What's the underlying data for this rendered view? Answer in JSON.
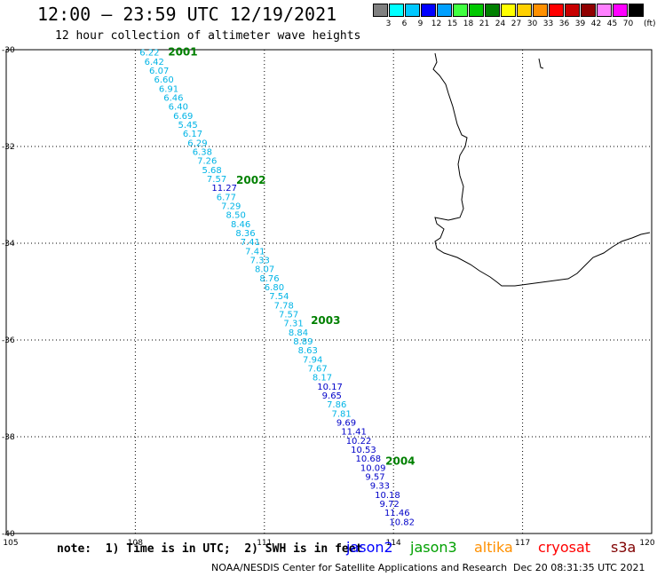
{
  "header": {
    "title": "12:00 – 23:59 UTC 12/19/2021",
    "subtitle": "12 hour collection of altimeter wave heights"
  },
  "colorbar": {
    "swatches": [
      {
        "color": "#808080",
        "label": ""
      },
      {
        "color": "#00ffff",
        "label": "3"
      },
      {
        "color": "#00c8ff",
        "label": "6"
      },
      {
        "color": "#0000ff",
        "label": "9"
      },
      {
        "color": "#00a0ff",
        "label": "12"
      },
      {
        "color": "#40ff40",
        "label": "15"
      },
      {
        "color": "#00c800",
        "label": "18"
      },
      {
        "color": "#008000",
        "label": "21"
      },
      {
        "color": "#ffff00",
        "label": "24"
      },
      {
        "color": "#ffd000",
        "label": "27"
      },
      {
        "color": "#ff9000",
        "label": "30"
      },
      {
        "color": "#ff0000",
        "label": "33"
      },
      {
        "color": "#c80000",
        "label": "36"
      },
      {
        "color": "#900000",
        "label": "39"
      },
      {
        "color": "#ff80ff",
        "label": "42"
      },
      {
        "color": "#ff00ff",
        "label": "45"
      },
      {
        "color": "#000000",
        "label": "70"
      }
    ],
    "unit": "(ft)"
  },
  "map": {
    "lon_labels": [
      "105",
      "108",
      "111",
      "114",
      "117",
      "120"
    ],
    "lat_labels": [
      "-30",
      "-32",
      "-34",
      "-36",
      "-38",
      "-40"
    ],
    "hour_labels": [
      {
        "text": "2001",
        "lat": -30.05
      },
      {
        "text": "2002",
        "lat": -32.7
      },
      {
        "text": "2003",
        "lat": -35.6
      },
      {
        "text": "2004",
        "lat": -38.5
      }
    ],
    "track_points": [
      {
        "v": "6.22",
        "c": "#00b4e6"
      },
      {
        "v": "6.42",
        "c": "#00b4e6"
      },
      {
        "v": "6.07",
        "c": "#00b4e6"
      },
      {
        "v": "6.60",
        "c": "#00b4e6"
      },
      {
        "v": "6.91",
        "c": "#00b4e6"
      },
      {
        "v": "6.46",
        "c": "#00b4e6"
      },
      {
        "v": "6.40",
        "c": "#00b4e6"
      },
      {
        "v": "6.69",
        "c": "#00b4e6"
      },
      {
        "v": "5.45",
        "c": "#00b4e6"
      },
      {
        "v": "6.17",
        "c": "#00b4e6"
      },
      {
        "v": "6.29",
        "c": "#00b4e6"
      },
      {
        "v": "6.38",
        "c": "#00b4e6"
      },
      {
        "v": "7.26",
        "c": "#00b4e6"
      },
      {
        "v": "5.68",
        "c": "#00b4e6"
      },
      {
        "v": "7.57",
        "c": "#00b4e6"
      },
      {
        "v": "11.27",
        "c": "#0000c8"
      },
      {
        "v": "6.77",
        "c": "#00b4e6"
      },
      {
        "v": "7.29",
        "c": "#00b4e6"
      },
      {
        "v": "8.50",
        "c": "#00b4e6"
      },
      {
        "v": "8.46",
        "c": "#00b4e6"
      },
      {
        "v": "8.36",
        "c": "#00b4e6"
      },
      {
        "v": "7.41",
        "c": "#00b4e6"
      },
      {
        "v": "7.41",
        "c": "#00b4e6"
      },
      {
        "v": "7.33",
        "c": "#00b4e6"
      },
      {
        "v": "8.07",
        "c": "#00b4e6"
      },
      {
        "v": "8.76",
        "c": "#00b4e6"
      },
      {
        "v": "6.80",
        "c": "#00b4e6"
      },
      {
        "v": "7.54",
        "c": "#00b4e6"
      },
      {
        "v": "7.78",
        "c": "#00b4e6"
      },
      {
        "v": "7.57",
        "c": "#00b4e6"
      },
      {
        "v": "7.31",
        "c": "#00b4e6"
      },
      {
        "v": "8.84",
        "c": "#00b4e6"
      },
      {
        "v": "8.89",
        "c": "#00b4e6"
      },
      {
        "v": "8.63",
        "c": "#00b4e6"
      },
      {
        "v": "7.94",
        "c": "#00b4e6"
      },
      {
        "v": "7.67",
        "c": "#00b4e6"
      },
      {
        "v": "8.17",
        "c": "#00b4e6"
      },
      {
        "v": "10.17",
        "c": "#0000c8"
      },
      {
        "v": "9.65",
        "c": "#0000c8"
      },
      {
        "v": "7.86",
        "c": "#00b4e6"
      },
      {
        "v": "7.81",
        "c": "#00b4e6"
      },
      {
        "v": "9.69",
        "c": "#0000c8"
      },
      {
        "v": "11.41",
        "c": "#0000c8"
      },
      {
        "v": "10.22",
        "c": "#0000c8"
      },
      {
        "v": "10.53",
        "c": "#0000c8"
      },
      {
        "v": "10.68",
        "c": "#0000c8"
      },
      {
        "v": "10.09",
        "c": "#0000c8"
      },
      {
        "v": "9.57",
        "c": "#0000c8"
      },
      {
        "v": "9.33",
        "c": "#0000c8"
      },
      {
        "v": "10.18",
        "c": "#0000c8"
      },
      {
        "v": "9.72",
        "c": "#0000c8"
      },
      {
        "v": "11.46",
        "c": "#0000c8"
      },
      {
        "v": "10.82",
        "c": "#0000c8"
      }
    ]
  },
  "note": "note:  1) Time is in UTC;  2) SWH is in feet",
  "satellites": [
    {
      "name": "jason2",
      "color": "#0000ff"
    },
    {
      "name": "jason3",
      "color": "#00a000"
    },
    {
      "name": "altika",
      "color": "#ff9000"
    },
    {
      "name": "cryosat",
      "color": "#ff0000"
    },
    {
      "name": "s3a",
      "color": "#800000"
    }
  ],
  "footer": {
    "credit": "NOAA/NESDIS Center for Satellite Applications and Research",
    "timestamp": "Dec 20 08:31:35 UTC 2021"
  }
}
